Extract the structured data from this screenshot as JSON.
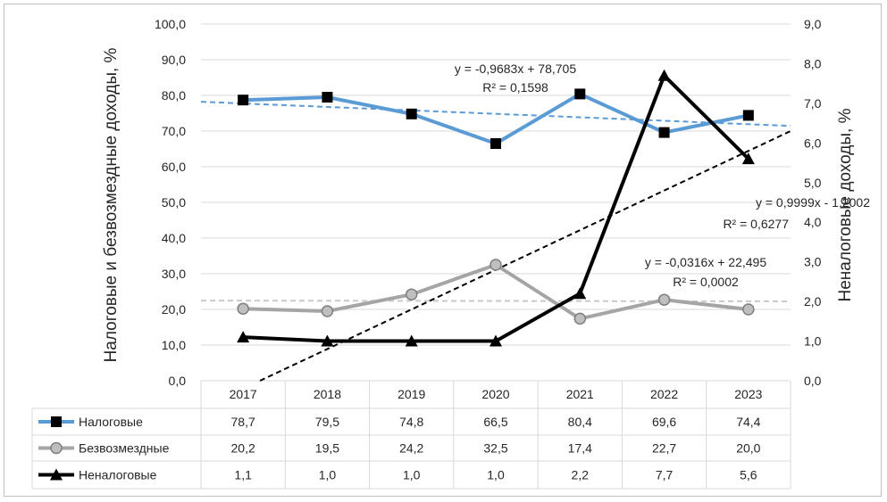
{
  "chart_data": {
    "type": "line",
    "categories": [
      "2017",
      "2018",
      "2019",
      "2020",
      "2021",
      "2022",
      "2023"
    ],
    "series": [
      {
        "name": "Налоговые",
        "axis": "left",
        "color": "#5b9bd5",
        "marker": "square",
        "values": [
          78.7,
          79.5,
          74.8,
          66.5,
          80.4,
          69.6,
          74.4
        ],
        "labels": [
          "78,7",
          "79,5",
          "74,8",
          "66,5",
          "80,4",
          "69,6",
          "74,4"
        ]
      },
      {
        "name": "Безвозмездные",
        "axis": "left",
        "color": "#a5a5a5",
        "marker": "circle",
        "values": [
          20.2,
          19.5,
          24.2,
          32.5,
          17.4,
          22.7,
          20.0
        ],
        "labels": [
          "20,2",
          "19,5",
          "24,2",
          "32,5",
          "17,4",
          "22,7",
          "20,0"
        ]
      },
      {
        "name": "Неналоговые",
        "axis": "right",
        "color": "#000000",
        "marker": "triangle",
        "values": [
          1.1,
          1.0,
          1.0,
          1.0,
          2.2,
          7.7,
          5.6
        ],
        "labels": [
          "1,1",
          "1,0",
          "1,0",
          "1,0",
          "2,2",
          "7,7",
          "5,6"
        ]
      }
    ],
    "trendlines": [
      {
        "series": "Налоговые",
        "slope": -0.9683,
        "intercept": 78.705,
        "equation": "y = -0,9683x + 78,705",
        "r2": "R² = 0,1598"
      },
      {
        "series": "Безвозмездные",
        "slope": -0.0316,
        "intercept": 22.495,
        "equation": "y = -0,0316x + 22,495",
        "r2": "R² = 0,0002"
      },
      {
        "series": "Неналоговые",
        "slope": 0.9999,
        "intercept": -1.2002,
        "equation": "y = 0,9999x - 1,2002",
        "r2": "R² = 0,6277"
      }
    ],
    "y_left": {
      "label": "Налоговые и безвозмездные доходы, %",
      "ylim": [
        0,
        100
      ],
      "ticks": [
        "0,0",
        "10,0",
        "20,0",
        "30,0",
        "40,0",
        "50,0",
        "60,0",
        "70,0",
        "80,0",
        "90,0",
        "100,0"
      ]
    },
    "y_right": {
      "label": "Неналоговые доходы, %",
      "ylim": [
        0,
        9
      ],
      "ticks": [
        "0,0",
        "1,0",
        "2,0",
        "3,0",
        "4,0",
        "5,0",
        "6,0",
        "7,0",
        "8,0",
        "9,0"
      ]
    },
    "data_table": true,
    "legend": "data-table"
  }
}
